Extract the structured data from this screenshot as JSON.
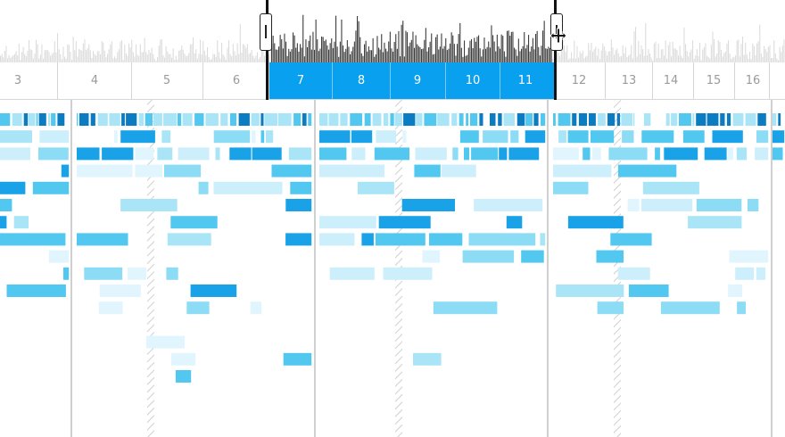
{
  "colors": {
    "overview_bar": "#dcdcdc",
    "overview_bar_selected": "#3c3c3c",
    "selection_band": "#0aa0f0",
    "tick_label": "#9a9a9a",
    "flame_palette": [
      "#0b7cc2",
      "#1aa2e8",
      "#52c8f0",
      "#8ddcf5",
      "#a9e5f7",
      "#cdeefb",
      "#e0f5fd"
    ]
  },
  "timeline": {
    "ticks": [
      "3",
      "4",
      "5",
      "6",
      "7",
      "8",
      "9",
      "10",
      "11",
      "12",
      "13",
      "14",
      "15",
      "16"
    ],
    "selected_ticks": [
      "7",
      "8",
      "9",
      "10",
      "11"
    ]
  },
  "icons": {
    "cursor": "resize-horizontal-cursor-icon"
  }
}
